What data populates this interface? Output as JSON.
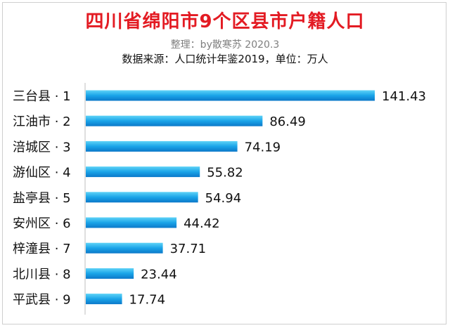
{
  "header": {
    "title": "四川省绵阳市9个区县市户籍人口",
    "subtitle": "整理：by散寒苏 2020.3",
    "source": "数据来源：人口统计年鉴2019，单位：万人"
  },
  "chart_data": {
    "type": "bar",
    "orientation": "horizontal",
    "title": "四川省绵阳市9个区县市户籍人口",
    "subtitle": "整理：by散寒苏 2020.3",
    "note": "数据来源：人口统计年鉴2019，单位：万人",
    "categories": [
      "三台县 · 1",
      "江油市 · 2",
      "涪城区 · 3",
      "游仙区 · 4",
      "盐亭县 · 5",
      "安州区 · 6",
      "梓潼县 · 7",
      "北川县 · 8",
      "平武县 · 9"
    ],
    "values": [
      141.43,
      86.49,
      74.19,
      55.82,
      54.94,
      44.42,
      37.71,
      23.44,
      17.74
    ],
    "value_labels": [
      "141.43",
      "86.49",
      "74.19",
      "55.82",
      "54.94",
      "44.42",
      "37.71",
      "23.44",
      "17.74"
    ],
    "xlim": [
      0,
      150
    ],
    "grid": false,
    "legend": "none",
    "colors": {
      "bar_top": "#5fd3f7",
      "bar_mid": "#1aa4e8",
      "bar_bottom": "#0b78c9",
      "title": "#e31b23"
    }
  }
}
